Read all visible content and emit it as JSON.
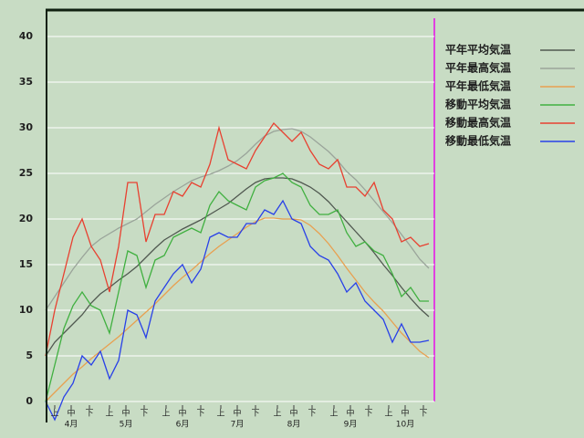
{
  "chart_data": {
    "type": "line",
    "x": [
      0,
      5,
      10,
      15,
      20,
      25,
      30,
      35,
      40,
      45,
      50,
      55,
      60,
      65,
      70,
      75,
      80,
      85,
      90,
      95,
      100,
      105,
      110,
      115,
      120,
      125,
      130,
      135,
      140,
      145,
      150,
      155,
      160,
      165,
      170,
      175,
      180,
      185,
      190,
      195,
      200,
      205,
      210
    ],
    "xlim": [
      0,
      213
    ],
    "xticks": [
      {
        "value": 5,
        "label": "上"
      },
      {
        "value": 14,
        "label": "中"
      },
      {
        "value": 24,
        "label": "下"
      },
      {
        "value": 35,
        "label": "上"
      },
      {
        "value": 44,
        "label": "中"
      },
      {
        "value": 54,
        "label": "下"
      },
      {
        "value": 66,
        "label": "上"
      },
      {
        "value": 75,
        "label": "中"
      },
      {
        "value": 85,
        "label": "下"
      },
      {
        "value": 96,
        "label": "上"
      },
      {
        "value": 105,
        "label": "中"
      },
      {
        "value": 115,
        "label": "下"
      },
      {
        "value": 127,
        "label": "上"
      },
      {
        "value": 136,
        "label": "中"
      },
      {
        "value": 146,
        "label": "下"
      },
      {
        "value": 158,
        "label": "上"
      },
      {
        "value": 167,
        "label": "中"
      },
      {
        "value": 177,
        "label": "下"
      },
      {
        "value": 188,
        "label": "上"
      },
      {
        "value": 197,
        "label": "中"
      },
      {
        "value": 207,
        "label": "下"
      }
    ],
    "month_labels": [
      {
        "value": 14,
        "label": "4月"
      },
      {
        "value": 44,
        "label": "5月"
      },
      {
        "value": 75,
        "label": "6月"
      },
      {
        "value": 105,
        "label": "7月"
      },
      {
        "value": 136,
        "label": "8月"
      },
      {
        "value": 167,
        "label": "9月"
      },
      {
        "value": 197,
        "label": "10月"
      }
    ],
    "ylim": [
      -2.3,
      43
    ],
    "yticks": [
      0,
      5,
      10,
      15,
      20,
      25,
      30,
      35,
      40
    ],
    "grid": true,
    "legend": "right",
    "series": [
      {
        "name": "平年平均気温",
        "color": "#505850",
        "values": [
          5.0,
          6.5,
          7.5,
          8.5,
          9.5,
          10.8,
          11.8,
          12.5,
          13.3,
          14.0,
          14.8,
          15.8,
          16.8,
          17.7,
          18.3,
          18.9,
          19.4,
          19.9,
          20.5,
          21.1,
          21.7,
          22.5,
          23.3,
          24.0,
          24.4,
          24.5,
          24.5,
          24.4,
          24.0,
          23.5,
          22.8,
          21.9,
          20.8,
          19.7,
          18.6,
          17.5,
          16.3,
          15.0,
          13.8,
          12.5,
          11.3,
          10.2,
          9.3
        ]
      },
      {
        "name": "平年最高気温",
        "color": "#9aa49a",
        "values": [
          10,
          11.5,
          13,
          14.5,
          15.8,
          17,
          17.8,
          18.4,
          19,
          19.5,
          20,
          20.8,
          21.6,
          22.3,
          23,
          23.6,
          24.2,
          24.6,
          24.9,
          25.3,
          25.8,
          26.4,
          27.2,
          28.2,
          29.1,
          29.6,
          29.8,
          29.9,
          29.6,
          29.0,
          28.2,
          27.4,
          26.4,
          25.2,
          24.3,
          23.2,
          22.0,
          20.8,
          19.6,
          18.3,
          17.0,
          15.6,
          14.6
        ]
      },
      {
        "name": "平年最低気温",
        "color": "#e8a050",
        "values": [
          0,
          1,
          2,
          3,
          3.8,
          4.7,
          5.5,
          6.3,
          7.1,
          8,
          8.9,
          9.8,
          10.7,
          11.7,
          12.7,
          13.6,
          14.4,
          15.3,
          16.2,
          17,
          17.7,
          18.4,
          19.1,
          19.7,
          20.1,
          20.1,
          20.0,
          20.0,
          19.9,
          19.3,
          18.4,
          17.3,
          16.0,
          14.6,
          13.3,
          12,
          10.9,
          9.9,
          8.7,
          7.5,
          6.5,
          5.5,
          4.8
        ]
      },
      {
        "name": "移動平均気温",
        "color": "#40b040",
        "values": [
          0,
          4,
          8,
          10.5,
          12,
          10.5,
          10,
          7.5,
          12,
          16.5,
          16,
          12.5,
          15.5,
          16,
          18,
          18.5,
          19,
          18.5,
          21.5,
          23,
          22,
          21.5,
          21,
          23.5,
          24.2,
          24.5,
          25,
          24,
          23.5,
          21.5,
          20.5,
          20.5,
          21,
          18.5,
          17,
          17.5,
          16.5,
          16,
          14,
          11.5,
          12.5,
          11,
          11
        ]
      },
      {
        "name": "移動最高気温",
        "color": "#e84030",
        "values": [
          5,
          10,
          14,
          18,
          20,
          17,
          15.5,
          12,
          17,
          24,
          24,
          17.5,
          20.5,
          20.5,
          23,
          22.5,
          24,
          23.5,
          26,
          30,
          26.5,
          26,
          25.5,
          27.5,
          29,
          30.5,
          29.5,
          28.5,
          29.5,
          27.5,
          26,
          25.5,
          26.5,
          23.5,
          23.5,
          22.5,
          24,
          21,
          20,
          17.5,
          18,
          17,
          17.3
        ]
      },
      {
        "name": "移動最低気温",
        "color": "#2840e8",
        "values": [
          0,
          -2,
          0.5,
          2,
          5,
          4,
          5.5,
          2.5,
          4.5,
          10,
          9.5,
          7,
          11,
          12.5,
          14,
          15,
          13,
          14.5,
          18,
          18.5,
          18,
          18,
          19.5,
          19.5,
          21,
          20.5,
          22,
          20,
          19.5,
          17,
          16,
          15.5,
          14,
          12,
          13,
          11,
          10,
          9,
          6.5,
          8.5,
          6.5,
          6.5,
          6.7
        ]
      }
    ]
  }
}
